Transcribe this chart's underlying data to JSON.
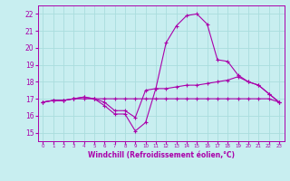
{
  "xlabel": "Windchill (Refroidissement éolien,°C)",
  "xlim": [
    -0.5,
    23.5
  ],
  "ylim": [
    14.5,
    22.5
  ],
  "yticks": [
    15,
    16,
    17,
    18,
    19,
    20,
    21,
    22
  ],
  "xticks": [
    0,
    1,
    2,
    3,
    4,
    5,
    6,
    7,
    8,
    9,
    10,
    11,
    12,
    13,
    14,
    15,
    16,
    17,
    18,
    19,
    20,
    21,
    22,
    23
  ],
  "bg_color": "#c8eef0",
  "grid_color": "#aadddd",
  "line_color": "#aa00aa",
  "line1_y": [
    16.8,
    16.9,
    16.9,
    17.0,
    17.1,
    17.0,
    16.6,
    16.1,
    16.1,
    15.1,
    15.6,
    17.6,
    20.3,
    21.3,
    21.9,
    22.0,
    21.4,
    19.3,
    19.2,
    18.4,
    18.0,
    17.8,
    17.3,
    16.8
  ],
  "line2_y": [
    16.8,
    16.9,
    16.9,
    17.0,
    17.1,
    17.0,
    16.8,
    16.3,
    16.3,
    15.9,
    17.5,
    17.6,
    17.6,
    17.7,
    17.8,
    17.8,
    17.9,
    18.0,
    18.1,
    18.3,
    18.0,
    17.8,
    17.3,
    16.8
  ],
  "line3_y": [
    16.8,
    16.9,
    16.9,
    17.0,
    17.0,
    17.0,
    17.0,
    17.0,
    17.0,
    17.0,
    17.0,
    17.0,
    17.0,
    17.0,
    17.0,
    17.0,
    17.0,
    17.0,
    17.0,
    17.0,
    17.0,
    17.0,
    17.0,
    16.8
  ]
}
